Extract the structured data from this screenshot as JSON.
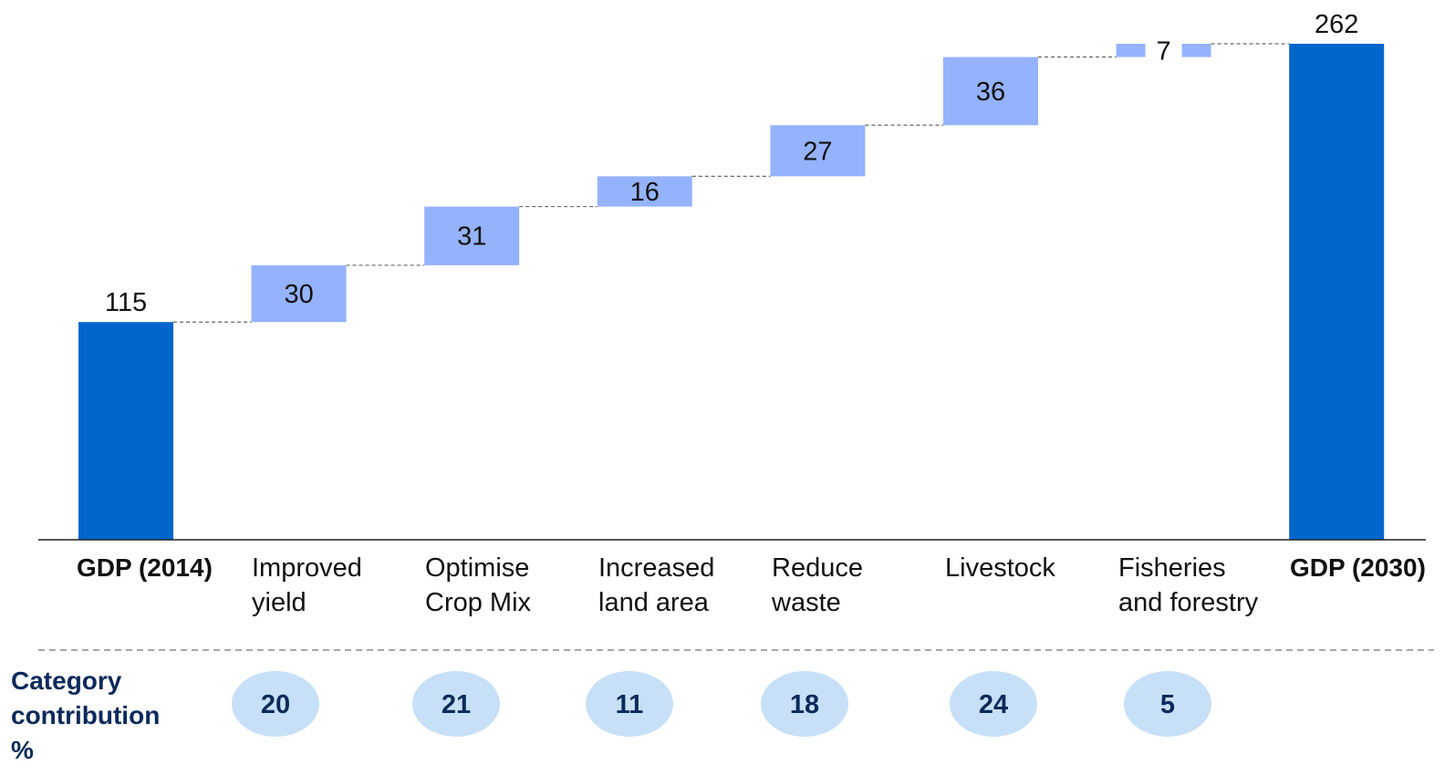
{
  "chart_data": {
    "type": "waterfall",
    "categories": [
      [
        "GDP (2014)"
      ],
      [
        "Improved",
        "yield"
      ],
      [
        "Optimise",
        "Crop Mix"
      ],
      [
        "Increased",
        "land area"
      ],
      [
        "Reduce",
        "waste"
      ],
      [
        "Livestock"
      ],
      [
        "Fisheries",
        "and forestry"
      ],
      [
        "GDP (2030)"
      ]
    ],
    "kinds": [
      "total",
      "increment",
      "increment",
      "increment",
      "increment",
      "increment",
      "increment",
      "total"
    ],
    "values": [
      115,
      30,
      31,
      16,
      27,
      36,
      7,
      262
    ],
    "value_labels": [
      "115",
      "30",
      "31",
      "16",
      "27",
      "36",
      "7",
      "262"
    ],
    "ylim": [
      0,
      262
    ],
    "category_contribution": {
      "label_lines": [
        "Category",
        "contribution",
        "%"
      ],
      "values": [
        "20",
        "21",
        "11",
        "18",
        "24",
        "5"
      ]
    }
  },
  "colors": {
    "total": "#0066cc",
    "increment": "#94b3fc",
    "bubble": "#c7e0f7",
    "connector": "#666666",
    "axis": "#222222"
  }
}
